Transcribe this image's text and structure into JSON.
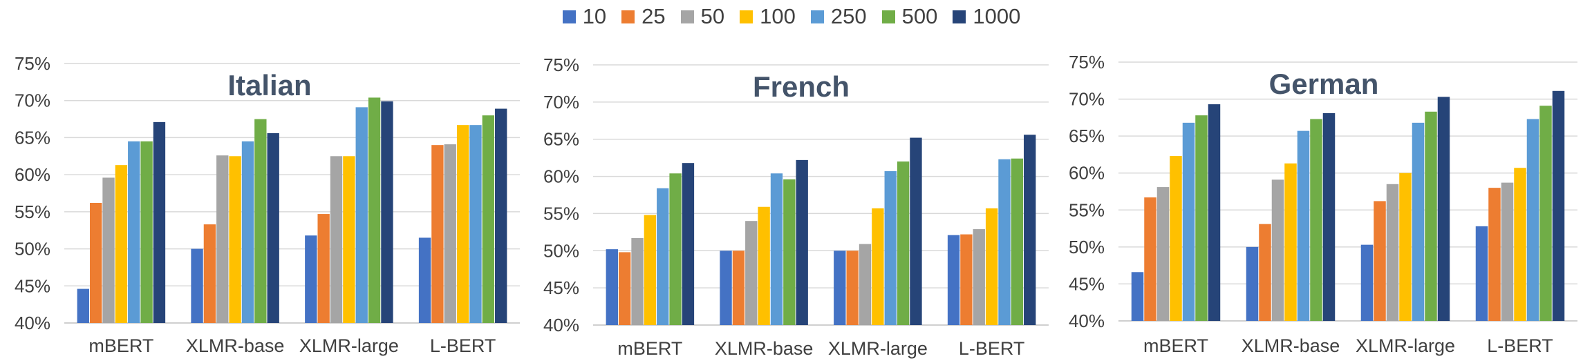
{
  "legend": [
    "10",
    "25",
    "50",
    "100",
    "250",
    "500",
    "1000"
  ],
  "colors": [
    "#4472c4",
    "#ed7d31",
    "#a5a5a5",
    "#ffc000",
    "#5b9bd5",
    "#70ad47",
    "#264478"
  ],
  "chart_data": [
    {
      "type": "bar",
      "title": "Italian",
      "categories": [
        "mBERT",
        "XLMR-base",
        "XLMR-large",
        "L-BERT"
      ],
      "yticks": [
        "40%",
        "45%",
        "50%",
        "55%",
        "60%",
        "65%",
        "70%",
        "75%"
      ],
      "ylim": [
        40,
        75
      ],
      "series": [
        {
          "name": "10",
          "values": [
            44.6,
            50.0,
            51.8,
            51.5
          ]
        },
        {
          "name": "25",
          "values": [
            56.2,
            53.3,
            54.7,
            64.0
          ]
        },
        {
          "name": "50",
          "values": [
            59.6,
            62.6,
            62.5,
            64.1
          ]
        },
        {
          "name": "100",
          "values": [
            61.3,
            62.5,
            62.5,
            66.7
          ]
        },
        {
          "name": "250",
          "values": [
            64.5,
            64.5,
            69.1,
            66.7
          ]
        },
        {
          "name": "500",
          "values": [
            64.5,
            67.5,
            70.4,
            68.0
          ]
        },
        {
          "name": "1000",
          "values": [
            67.1,
            65.6,
            69.9,
            68.9
          ]
        }
      ]
    },
    {
      "type": "bar",
      "title": "French",
      "categories": [
        "mBERT",
        "XLMR-base",
        "XLMR-large",
        "L-BERT"
      ],
      "yticks": [
        "40%",
        "45%",
        "50%",
        "55%",
        "60%",
        "65%",
        "70%",
        "75%"
      ],
      "ylim": [
        40,
        75
      ],
      "series": [
        {
          "name": "10",
          "values": [
            50.2,
            50.0,
            50.0,
            52.1
          ]
        },
        {
          "name": "25",
          "values": [
            49.8,
            50.0,
            50.0,
            52.2
          ]
        },
        {
          "name": "50",
          "values": [
            51.7,
            54.0,
            50.9,
            52.9
          ]
        },
        {
          "name": "100",
          "values": [
            54.8,
            55.9,
            55.7,
            55.7
          ]
        },
        {
          "name": "250",
          "values": [
            58.4,
            60.4,
            60.7,
            62.3
          ]
        },
        {
          "name": "500",
          "values": [
            60.4,
            59.6,
            62.0,
            62.4
          ]
        },
        {
          "name": "1000",
          "values": [
            61.8,
            62.2,
            65.2,
            65.6
          ]
        }
      ]
    },
    {
      "type": "bar",
      "title": "German",
      "categories": [
        "mBERT",
        "XLMR-base",
        "XLMR-large",
        "L-BERT"
      ],
      "yticks": [
        "40%",
        "45%",
        "50%",
        "55%",
        "60%",
        "65%",
        "70%",
        "75%"
      ],
      "ylim": [
        40,
        75
      ],
      "series": [
        {
          "name": "10",
          "values": [
            46.6,
            50.0,
            50.3,
            52.8
          ]
        },
        {
          "name": "25",
          "values": [
            56.7,
            53.1,
            56.2,
            58.0
          ]
        },
        {
          "name": "50",
          "values": [
            58.1,
            59.1,
            58.5,
            58.7
          ]
        },
        {
          "name": "100",
          "values": [
            62.3,
            61.3,
            60.0,
            60.7
          ]
        },
        {
          "name": "250",
          "values": [
            66.8,
            65.7,
            66.8,
            67.3
          ]
        },
        {
          "name": "500",
          "values": [
            67.8,
            67.3,
            68.3,
            69.1
          ]
        },
        {
          "name": "1000",
          "values": [
            69.3,
            68.1,
            70.3,
            71.1
          ]
        }
      ]
    }
  ]
}
